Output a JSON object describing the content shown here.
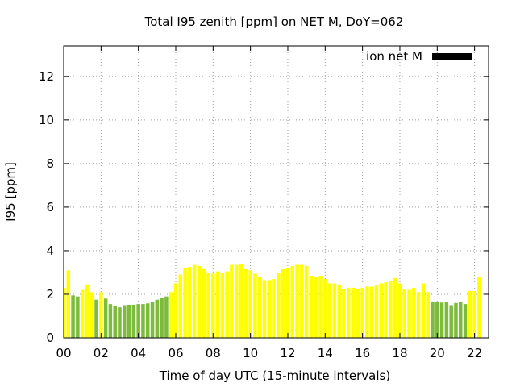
{
  "chart_data": {
    "type": "bar",
    "title": "Total I95 zenith [ppm] on NET M, DoY=062",
    "xlabel": "Time of day UTC (15-minute intervals)",
    "ylabel": "I95 [ppm]",
    "xlim": [
      0,
      22.75
    ],
    "ylim": [
      0,
      13.4
    ],
    "x_ticks": [
      "00",
      "02",
      "04",
      "06",
      "08",
      "10",
      "12",
      "14",
      "16",
      "18",
      "20",
      "22"
    ],
    "y_ticks": [
      "0",
      "2",
      "4",
      "6",
      "8",
      "10",
      "12"
    ],
    "grid": true,
    "legend": {
      "label": "ion net M",
      "color": "#000000",
      "position": "top-right"
    },
    "colors": {
      "yellow": "#ffff00",
      "green": "#7cbb3c"
    },
    "interval_hours": 0.25,
    "values": [
      2.3,
      3.1,
      1.95,
      1.9,
      2.2,
      2.45,
      2.1,
      1.75,
      2.1,
      1.8,
      1.55,
      1.45,
      1.4,
      1.5,
      1.52,
      1.52,
      1.55,
      1.55,
      1.58,
      1.65,
      1.75,
      1.85,
      1.9,
      2.1,
      2.5,
      2.9,
      3.2,
      3.25,
      3.35,
      3.3,
      3.15,
      3.0,
      2.95,
      3.05,
      3.0,
      3.05,
      3.35,
      3.35,
      3.4,
      3.15,
      3.1,
      2.95,
      2.8,
      2.65,
      2.65,
      2.7,
      3.0,
      3.15,
      3.2,
      3.3,
      3.35,
      3.35,
      3.3,
      2.85,
      2.8,
      2.85,
      2.7,
      2.5,
      2.5,
      2.45,
      2.25,
      2.3,
      2.3,
      2.25,
      2.3,
      2.35,
      2.35,
      2.4,
      2.5,
      2.55,
      2.6,
      2.75,
      2.5,
      2.25,
      2.2,
      2.3,
      2.1,
      2.5,
      2.1,
      1.65,
      1.65,
      1.62,
      1.65,
      1.5,
      1.6,
      1.65,
      1.55,
      2.15,
      2.15,
      2.8
    ],
    "bar_colors": [
      "yellow",
      "yellow",
      "green",
      "green",
      "yellow",
      "yellow",
      "yellow",
      "green",
      "yellow",
      "green",
      "green",
      "green",
      "green",
      "green",
      "green",
      "green",
      "green",
      "green",
      "green",
      "green",
      "green",
      "green",
      "green",
      "yellow",
      "yellow",
      "yellow",
      "yellow",
      "yellow",
      "yellow",
      "yellow",
      "yellow",
      "yellow",
      "yellow",
      "yellow",
      "yellow",
      "yellow",
      "yellow",
      "yellow",
      "yellow",
      "yellow",
      "yellow",
      "yellow",
      "yellow",
      "yellow",
      "yellow",
      "yellow",
      "yellow",
      "yellow",
      "yellow",
      "yellow",
      "yellow",
      "yellow",
      "yellow",
      "yellow",
      "yellow",
      "yellow",
      "yellow",
      "yellow",
      "yellow",
      "yellow",
      "yellow",
      "yellow",
      "yellow",
      "yellow",
      "yellow",
      "yellow",
      "yellow",
      "yellow",
      "yellow",
      "yellow",
      "yellow",
      "yellow",
      "yellow",
      "yellow",
      "yellow",
      "yellow",
      "yellow",
      "yellow",
      "yellow",
      "green",
      "green",
      "green",
      "green",
      "green",
      "green",
      "green",
      "green",
      "yellow",
      "yellow",
      "yellow"
    ]
  }
}
